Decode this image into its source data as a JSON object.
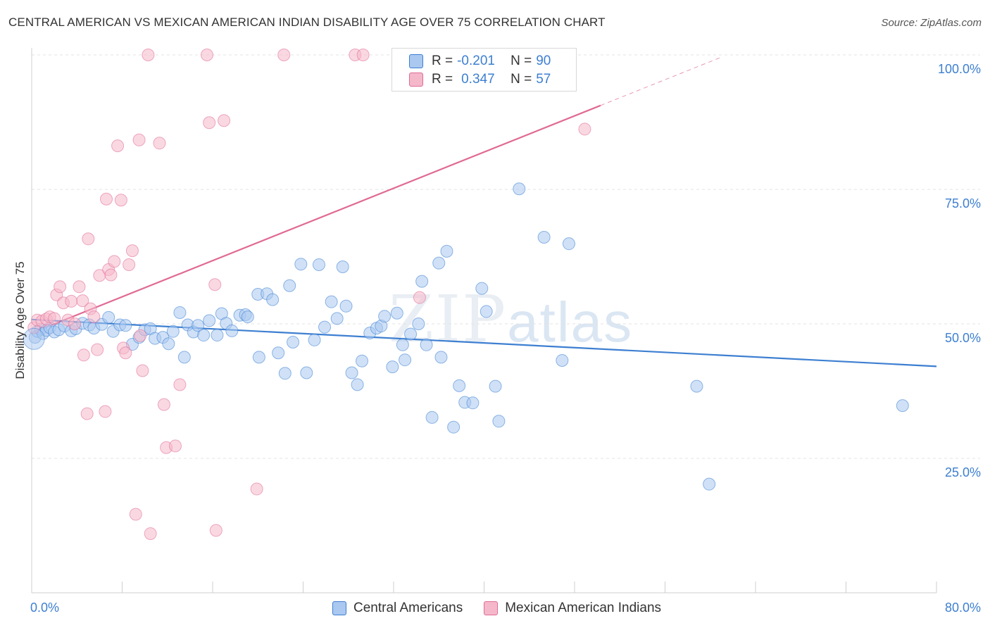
{
  "title": "CENTRAL AMERICAN VS MEXICAN AMERICAN INDIAN DISABILITY AGE OVER 75 CORRELATION CHART",
  "source": "Source: ZipAtlas.com",
  "watermark": {
    "part1": "ZIP",
    "part2": "atlas"
  },
  "stats": [
    {
      "r_label": "R = ",
      "r_value": "-0.201",
      "n_label": "N = ",
      "n_value": "90",
      "color": "#aac8f0"
    },
    {
      "r_label": "R = ",
      "r_value": "0.347",
      "n_label": "N = ",
      "n_value": "57",
      "color": "#f5b8cb"
    }
  ],
  "legend": [
    {
      "name": "Central Americans",
      "color": "#aac8f0"
    },
    {
      "name": "Mexican American Indians",
      "color": "#f5b8cb"
    }
  ],
  "chart_data": {
    "type": "scatter",
    "title": "CENTRAL AMERICAN VS MEXICAN AMERICAN INDIAN DISABILITY AGE OVER 75 CORRELATION CHART",
    "xlabel": "",
    "ylabel": "Disability Age Over 75",
    "xlim": [
      0,
      80
    ],
    "ylim": [
      0,
      100
    ],
    "x_tick_labels": [
      "0.0%",
      "80.0%"
    ],
    "y_ticks": [
      25,
      50,
      75,
      100
    ],
    "y_tick_labels": [
      "25.0%",
      "50.0%",
      "75.0%",
      "100.0%"
    ],
    "grid": true,
    "legend_position": "bottom",
    "series": [
      {
        "name": "Central Americans",
        "color": "#3d7fd1",
        "fill": "#aac8f0",
        "trend": {
          "x": [
            0,
            80
          ],
          "y": [
            50.8,
            42.1
          ]
        },
        "points": [
          [
            0.3,
            47.5
          ],
          [
            0.5,
            48.6
          ],
          [
            0.8,
            49.0
          ],
          [
            1.0,
            48.2
          ],
          [
            1.3,
            48.8
          ],
          [
            1.6,
            49.3
          ],
          [
            2.0,
            48.5
          ],
          [
            2.4,
            48.9
          ],
          [
            2.9,
            49.6
          ],
          [
            3.5,
            48.7
          ],
          [
            3.9,
            49.1
          ],
          [
            4.5,
            50.1
          ],
          [
            5.1,
            49.8
          ],
          [
            5.5,
            49.2
          ],
          [
            6.2,
            49.9
          ],
          [
            6.8,
            51.2
          ],
          [
            7.2,
            48.6
          ],
          [
            7.8,
            49.8
          ],
          [
            8.3,
            49.7
          ],
          [
            8.9,
            46.2
          ],
          [
            9.5,
            47.5
          ],
          [
            10.0,
            48.9
          ],
          [
            10.5,
            49.1
          ],
          [
            10.9,
            47.3
          ],
          [
            11.6,
            47.5
          ],
          [
            12.1,
            46.3
          ],
          [
            12.5,
            48.6
          ],
          [
            13.1,
            52.1
          ],
          [
            13.5,
            43.8
          ],
          [
            13.8,
            49.8
          ],
          [
            14.3,
            48.5
          ],
          [
            14.7,
            49.7
          ],
          [
            15.2,
            47.9
          ],
          [
            15.7,
            50.6
          ],
          [
            16.4,
            47.9
          ],
          [
            16.8,
            51.9
          ],
          [
            17.2,
            50.1
          ],
          [
            17.7,
            48.7
          ],
          [
            18.4,
            51.6
          ],
          [
            18.9,
            51.7
          ],
          [
            19.1,
            51.3
          ],
          [
            20.0,
            55.5
          ],
          [
            20.1,
            43.8
          ],
          [
            20.8,
            55.6
          ],
          [
            21.3,
            54.5
          ],
          [
            21.8,
            44.6
          ],
          [
            22.4,
            40.8
          ],
          [
            22.8,
            57.1
          ],
          [
            23.1,
            46.6
          ],
          [
            23.8,
            61.1
          ],
          [
            24.3,
            40.9
          ],
          [
            25.0,
            47.0
          ],
          [
            25.4,
            61.0
          ],
          [
            25.9,
            49.4
          ],
          [
            26.5,
            54.1
          ],
          [
            27.0,
            51.0
          ],
          [
            27.5,
            60.6
          ],
          [
            27.8,
            53.3
          ],
          [
            28.3,
            40.9
          ],
          [
            28.8,
            38.7
          ],
          [
            29.2,
            43.1
          ],
          [
            29.9,
            48.3
          ],
          [
            30.5,
            49.2
          ],
          [
            30.9,
            49.6
          ],
          [
            31.2,
            51.4
          ],
          [
            31.9,
            42.0
          ],
          [
            32.3,
            52.0
          ],
          [
            32.8,
            46.1
          ],
          [
            33.0,
            43.3
          ],
          [
            33.5,
            48.1
          ],
          [
            34.2,
            50.0
          ],
          [
            34.5,
            57.9
          ],
          [
            34.9,
            46.1
          ],
          [
            35.4,
            32.6
          ],
          [
            36.0,
            61.3
          ],
          [
            36.2,
            43.8
          ],
          [
            36.7,
            63.5
          ],
          [
            37.3,
            30.8
          ],
          [
            37.8,
            38.5
          ],
          [
            38.3,
            35.4
          ],
          [
            39.0,
            35.3
          ],
          [
            39.8,
            56.6
          ],
          [
            40.2,
            52.3
          ],
          [
            41.0,
            38.4
          ],
          [
            41.3,
            31.9
          ],
          [
            43.1,
            75.1
          ],
          [
            45.3,
            66.1
          ],
          [
            46.9,
            43.2
          ],
          [
            47.5,
            64.9
          ],
          [
            58.8,
            38.4
          ],
          [
            59.9,
            20.2
          ],
          [
            77.0,
            34.8
          ]
        ]
      },
      {
        "name": "Mexican American Indians",
        "color": "#e06a94",
        "fill": "#f5b8cb",
        "trend": {
          "x": [
            0,
            50.3
          ],
          "y": [
            48.3,
            90.6
          ]
        },
        "trend_dashed": {
          "x": [
            50.3,
            61.0
          ],
          "y": [
            90.6,
            99.6
          ]
        },
        "points": [
          [
            0.2,
            49.3
          ],
          [
            0.5,
            50.7
          ],
          [
            0.9,
            50.5
          ],
          [
            1.3,
            50.9
          ],
          [
            1.6,
            51.3
          ],
          [
            2.0,
            51.0
          ],
          [
            2.2,
            55.4
          ],
          [
            2.5,
            56.9
          ],
          [
            2.8,
            53.9
          ],
          [
            3.2,
            50.7
          ],
          [
            3.5,
            54.2
          ],
          [
            3.8,
            50.0
          ],
          [
            4.2,
            56.9
          ],
          [
            4.5,
            54.3
          ],
          [
            4.6,
            44.2
          ],
          [
            4.9,
            33.3
          ],
          [
            5.0,
            65.8
          ],
          [
            5.2,
            52.8
          ],
          [
            5.5,
            51.3
          ],
          [
            5.8,
            45.2
          ],
          [
            6.0,
            59.0
          ],
          [
            6.5,
            33.7
          ],
          [
            6.6,
            73.2
          ],
          [
            6.8,
            60.1
          ],
          [
            7.0,
            59.1
          ],
          [
            7.3,
            61.6
          ],
          [
            7.6,
            83.1
          ],
          [
            7.9,
            73.0
          ],
          [
            8.1,
            45.5
          ],
          [
            8.3,
            44.6
          ],
          [
            8.6,
            61.0
          ],
          [
            8.9,
            63.6
          ],
          [
            9.2,
            14.6
          ],
          [
            9.5,
            84.2
          ],
          [
            9.6,
            47.8
          ],
          [
            9.8,
            41.3
          ],
          [
            10.3,
            100.0
          ],
          [
            10.5,
            11.0
          ],
          [
            11.3,
            83.6
          ],
          [
            11.7,
            35.0
          ],
          [
            11.9,
            27.0
          ],
          [
            12.7,
            27.3
          ],
          [
            13.1,
            38.7
          ],
          [
            15.5,
            100.0
          ],
          [
            15.7,
            87.4
          ],
          [
            16.2,
            57.3
          ],
          [
            16.3,
            11.6
          ],
          [
            17.0,
            87.8
          ],
          [
            19.9,
            19.3
          ],
          [
            22.3,
            100.0
          ],
          [
            28.6,
            100.0
          ],
          [
            29.3,
            100.0
          ],
          [
            34.3,
            54.9
          ],
          [
            48.9,
            86.2
          ]
        ]
      }
    ]
  }
}
